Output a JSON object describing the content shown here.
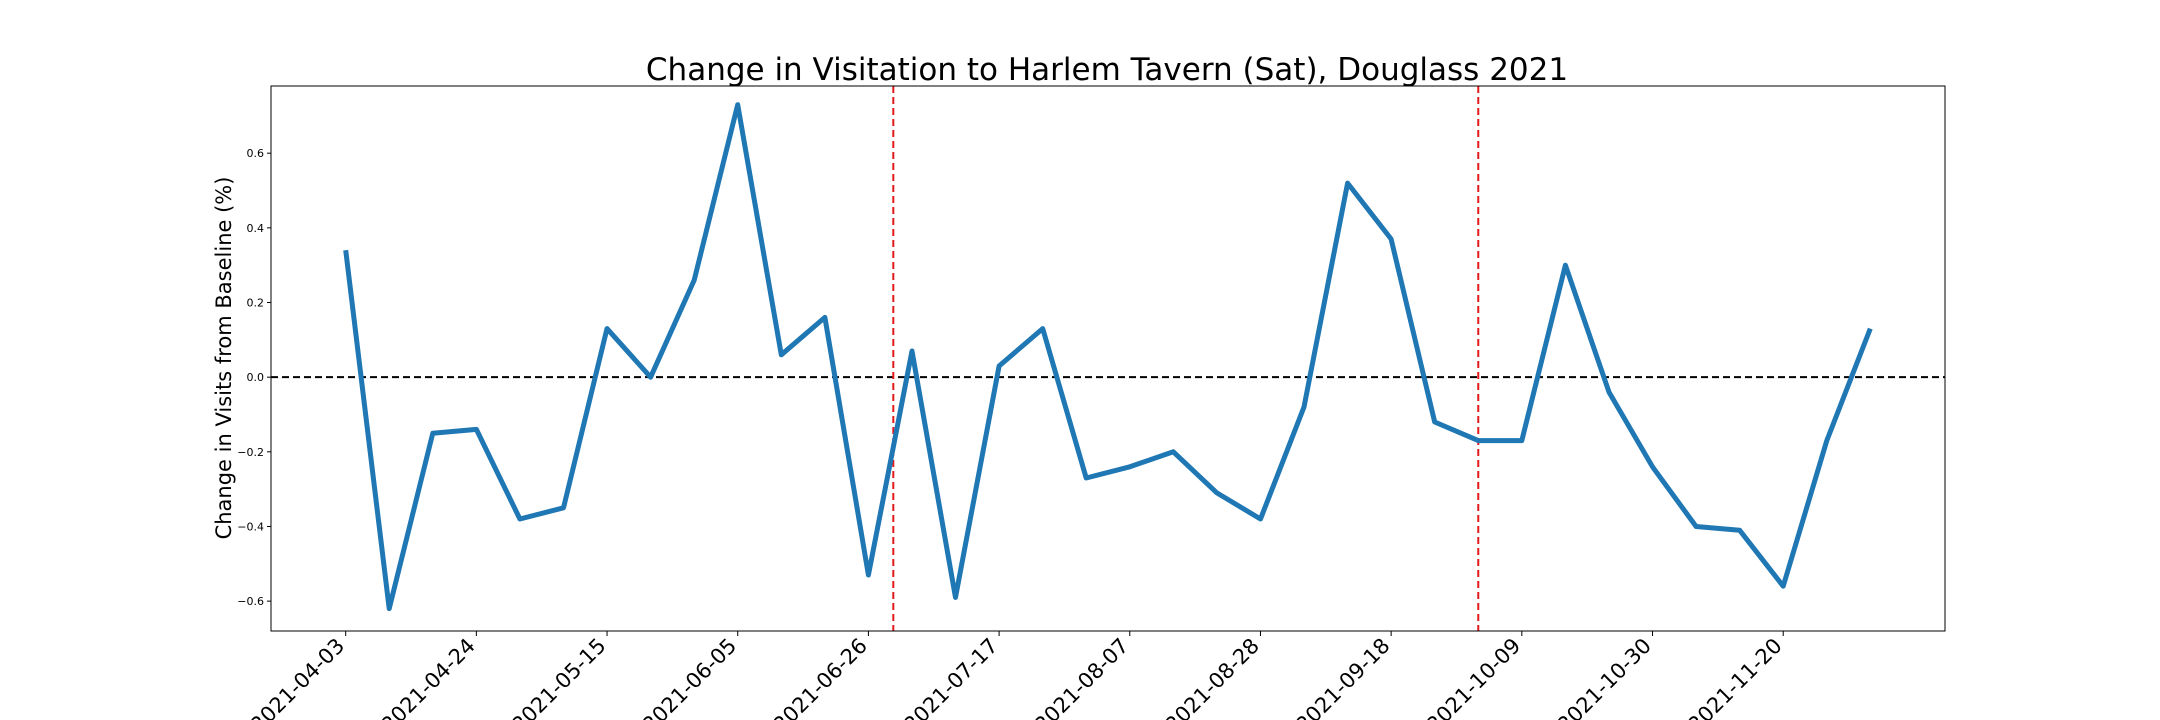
{
  "chart_data": {
    "type": "line",
    "title": "Change in Visitation to Harlem Tavern (Sat), Douglass 2021",
    "xlabel": "",
    "ylabel": "Change in Visits from Baseline (%)",
    "ylim": [
      -0.68,
      0.78
    ],
    "xlim": [
      "2021-03-22",
      "2021-12-16"
    ],
    "grid": false,
    "x_ticks": [
      "2021-04-03",
      "2021-04-24",
      "2021-05-15",
      "2021-06-05",
      "2021-06-26",
      "2021-07-17",
      "2021-08-07",
      "2021-08-28",
      "2021-09-18",
      "2021-10-09",
      "2021-10-30",
      "2021-11-20"
    ],
    "y_ticks": [
      -0.6,
      -0.4,
      -0.2,
      0.0,
      0.2,
      0.4,
      0.6
    ],
    "y_tick_labels": [
      "−0.6",
      "−0.4",
      "−0.2",
      "0.0",
      "0.2",
      "0.4",
      "0.6"
    ],
    "baseline": 0.0,
    "vertical_lines": [
      "2021-06-30",
      "2021-10-02"
    ],
    "colors": {
      "series": "#1f77b4",
      "baseline": "#000000",
      "vertical_lines": "#e31a1c"
    },
    "series": [
      {
        "x": [
          "2021-04-03",
          "2021-04-10",
          "2021-04-17",
          "2021-04-24",
          "2021-05-01",
          "2021-05-08",
          "2021-05-15",
          "2021-05-22",
          "2021-05-29",
          "2021-06-05",
          "2021-06-12",
          "2021-06-19",
          "2021-06-26",
          "2021-07-03",
          "2021-07-10",
          "2021-07-17",
          "2021-07-24",
          "2021-07-31",
          "2021-08-07",
          "2021-08-14",
          "2021-08-21",
          "2021-08-28",
          "2021-09-04",
          "2021-09-11",
          "2021-09-18",
          "2021-09-25",
          "2021-10-02",
          "2021-10-09",
          "2021-10-16",
          "2021-10-23",
          "2021-10-30",
          "2021-11-06",
          "2021-11-13",
          "2021-11-20",
          "2021-11-27",
          "2021-12-04"
        ],
        "values": [
          0.34,
          -0.62,
          -0.15,
          -0.14,
          -0.38,
          -0.35,
          0.13,
          0.0,
          0.26,
          0.73,
          0.06,
          0.16,
          -0.53,
          0.07,
          -0.59,
          0.03,
          0.13,
          -0.27,
          -0.24,
          -0.2,
          -0.31,
          -0.38,
          -0.08,
          0.52,
          0.37,
          -0.12,
          -0.17,
          -0.17,
          0.3,
          -0.04,
          -0.24,
          -0.4,
          -0.41,
          -0.56,
          -0.17,
          0.13
        ]
      }
    ]
  }
}
